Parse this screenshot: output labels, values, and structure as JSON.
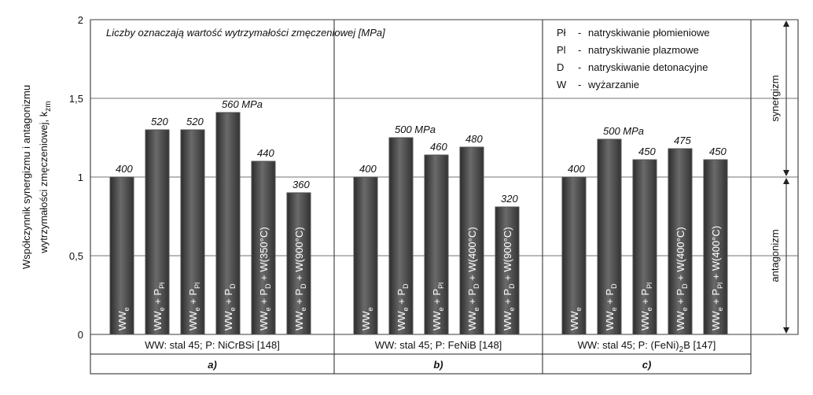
{
  "chart_data": {
    "type": "bar",
    "y_label_lines": [
      "Współczynnik synergizmu i antagonizmu",
      "wytrzymałości zmęczeniowej,  k"
    ],
    "y_label_sub": "zm",
    "ylim": [
      0,
      2
    ],
    "yticks": [
      0,
      {
        "value": 0.5,
        "label": "0,5"
      },
      1,
      {
        "value": 1.5,
        "label": "1,5"
      },
      2
    ],
    "grid": true,
    "color": "#505050",
    "note": "Liczby oznaczają wartość wytrzymałości zmęczeniowej  [MPa]",
    "legend": [
      {
        "code": "Pł",
        "text": "natryskiwanie płomieniowe"
      },
      {
        "code": "Pl",
        "text": "natryskiwanie plazmowe"
      },
      {
        "code": "D",
        "text": "natryskiwanie detonacyjne"
      },
      {
        "code": "W",
        "text": "wyżarzanie"
      }
    ],
    "regions": [
      "synergizm",
      "antagonizm"
    ],
    "panels": [
      {
        "letter": "a)",
        "caption_parts": [
          "WW: stal 45;  P: NiCrBSi  [148]"
        ],
        "categories": [
          [
            "WW",
            "e"
          ],
          [
            "WW",
            "e",
            " + P",
            "Pł"
          ],
          [
            "WW",
            "e",
            " + P",
            "Pl"
          ],
          [
            "WW",
            "e",
            " + P",
            "D"
          ],
          [
            "WW",
            "e",
            " + P",
            "D",
            " + W(350°C)"
          ],
          [
            "WW",
            "e",
            " + P",
            "D",
            " + W(900°C)"
          ]
        ],
        "values": [
          1.0,
          1.3,
          1.3,
          1.41,
          1.1,
          0.9
        ],
        "bar_labels": [
          "400",
          "520",
          "520",
          "560 MPa",
          "440",
          "360"
        ]
      },
      {
        "letter": "b)",
        "caption_parts": [
          "WW: stal 45;  P: FeNiB  [148]"
        ],
        "categories": [
          [
            "WW",
            "e"
          ],
          [
            "WW",
            "e",
            " + P",
            "D"
          ],
          [
            "WW",
            "e",
            " + P",
            "Pl"
          ],
          [
            "WW",
            "e",
            " + P",
            "D",
            " + W(400°C)"
          ],
          [
            "WW",
            "e",
            " + P",
            "D",
            " + W(900°C)"
          ]
        ],
        "values": [
          1.0,
          1.25,
          1.14,
          1.19,
          0.81
        ],
        "bar_labels": [
          "400",
          "500 MPa",
          "460",
          "480",
          "320"
        ]
      },
      {
        "letter": "c)",
        "caption_parts": [
          "WW: stal 45;  P: (FeNi)",
          "2",
          "B  [147]"
        ],
        "categories": [
          [
            "WW",
            "e"
          ],
          [
            "WW",
            "e",
            " + P",
            "D"
          ],
          [
            "WW",
            "e",
            " + P",
            "Pl"
          ],
          [
            "WW",
            "e",
            " + P",
            "D",
            " + W(400°C)"
          ],
          [
            "WW",
            "e",
            " + P",
            "Pl",
            " + W(400°C)"
          ]
        ],
        "values": [
          1.0,
          1.24,
          1.11,
          1.18,
          1.11
        ],
        "bar_labels": [
          "400",
          "500 MPa",
          "450",
          "475",
          "450"
        ]
      }
    ]
  }
}
